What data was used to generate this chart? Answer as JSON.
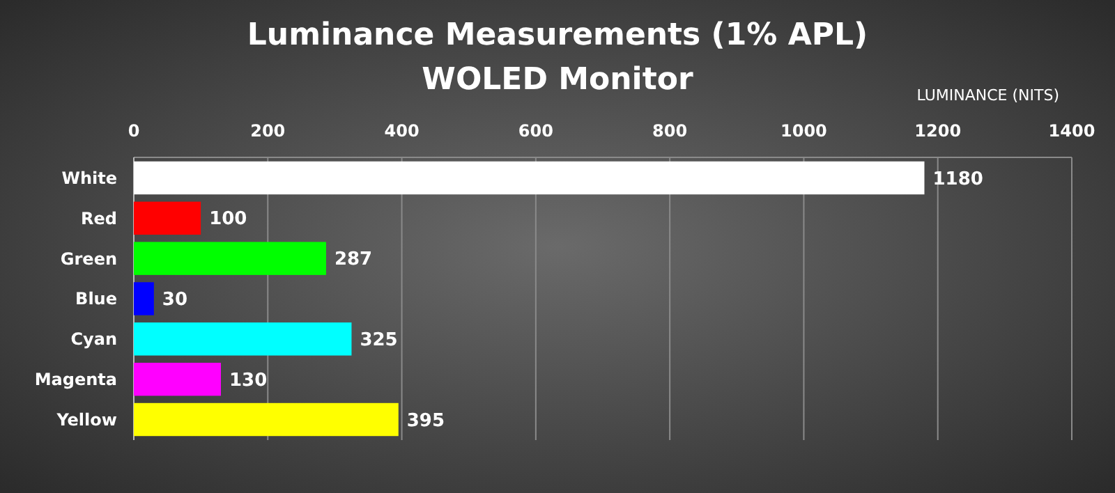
{
  "chart_data": {
    "type": "bar",
    "orientation": "horizontal",
    "title": "Luminance Measurements (1% APL)",
    "subtitle": "WOLED Monitor",
    "xlabel": "LUMINANCE (NITS)",
    "categories": [
      "White",
      "Red",
      "Green",
      "Blue",
      "Cyan",
      "Magenta",
      "Yellow"
    ],
    "values": [
      1180,
      100,
      287,
      30,
      325,
      130,
      395
    ],
    "colors": [
      "#ffffff",
      "#ff0000",
      "#00ff00",
      "#0000ff",
      "#00ffff",
      "#ff00ff",
      "#ffff00"
    ],
    "xlim": [
      0,
      1400
    ],
    "xticks": [
      0,
      200,
      400,
      600,
      800,
      1000,
      1200,
      1400
    ],
    "grid": "x",
    "data_labels": true
  }
}
